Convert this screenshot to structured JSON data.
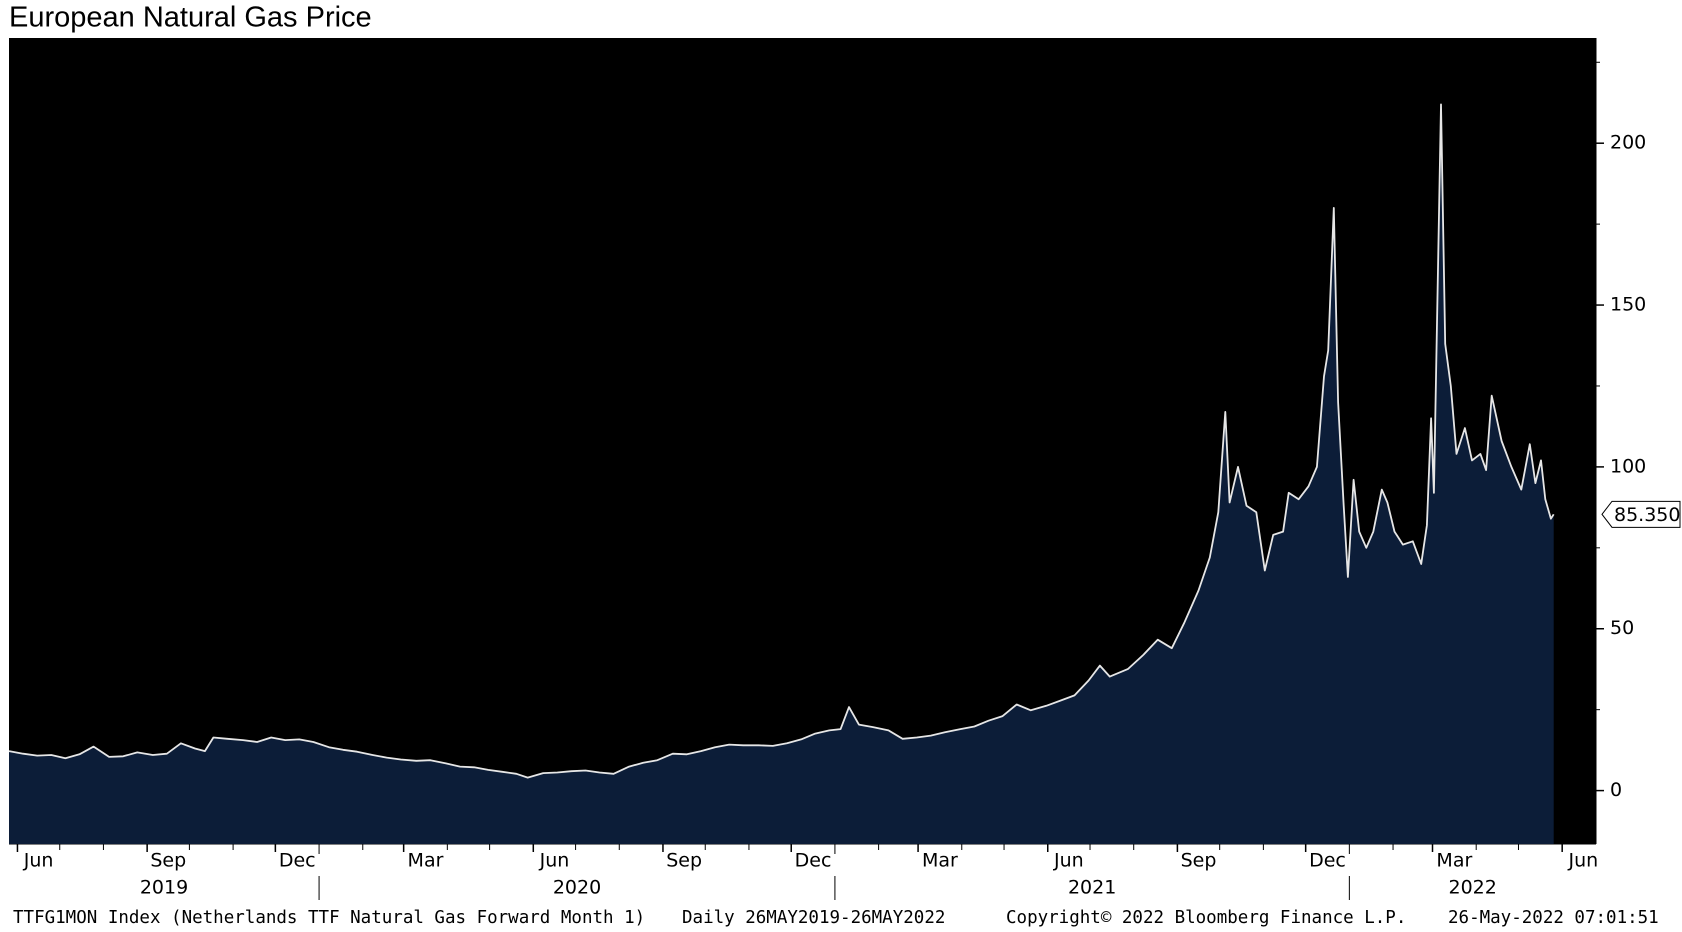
{
  "chart_data": {
    "type": "area",
    "title": "European Natural Gas Price",
    "background": "#000000",
    "x": [
      "2019-05-26",
      "2019-06-05",
      "2019-06-15",
      "2019-06-25",
      "2019-07-05",
      "2019-07-15",
      "2019-07-25",
      "2019-08-05",
      "2019-08-15",
      "2019-08-25",
      "2019-09-05",
      "2019-09-15",
      "2019-09-25",
      "2019-10-05",
      "2019-10-12",
      "2019-10-18",
      "2019-10-28",
      "2019-11-08",
      "2019-11-18",
      "2019-11-28",
      "2019-12-08",
      "2019-12-18",
      "2019-12-28",
      "2020-01-08",
      "2020-01-18",
      "2020-01-28",
      "2020-02-08",
      "2020-02-18",
      "2020-02-28",
      "2020-03-10",
      "2020-03-20",
      "2020-03-31",
      "2020-04-10",
      "2020-04-20",
      "2020-04-30",
      "2020-05-10",
      "2020-05-20",
      "2020-05-28",
      "2020-06-08",
      "2020-06-18",
      "2020-06-28",
      "2020-07-08",
      "2020-07-18",
      "2020-07-28",
      "2020-08-08",
      "2020-08-18",
      "2020-08-28",
      "2020-09-08",
      "2020-09-18",
      "2020-09-28",
      "2020-10-08",
      "2020-10-18",
      "2020-10-28",
      "2020-11-08",
      "2020-11-18",
      "2020-11-28",
      "2020-12-08",
      "2020-12-18",
      "2020-12-28",
      "2021-01-05",
      "2021-01-11",
      "2021-01-18",
      "2021-01-28",
      "2021-02-08",
      "2021-02-18",
      "2021-02-28",
      "2021-03-10",
      "2021-03-20",
      "2021-03-31",
      "2021-04-10",
      "2021-04-20",
      "2021-04-30",
      "2021-05-10",
      "2021-05-20",
      "2021-05-31",
      "2021-06-10",
      "2021-06-20",
      "2021-06-30",
      "2021-07-08",
      "2021-07-15",
      "2021-07-28",
      "2021-08-08",
      "2021-08-18",
      "2021-08-28",
      "2021-09-06",
      "2021-09-16",
      "2021-09-24",
      "2021-09-30",
      "2021-10-05",
      "2021-10-08",
      "2021-10-14",
      "2021-10-20",
      "2021-10-27",
      "2021-11-02",
      "2021-11-08",
      "2021-11-15",
      "2021-11-19",
      "2021-11-26",
      "2021-12-03",
      "2021-12-09",
      "2021-12-14",
      "2021-12-17",
      "2021-12-21",
      "2021-12-24",
      "2021-12-28",
      "2021-12-31",
      "2022-01-04",
      "2022-01-08",
      "2022-01-13",
      "2022-01-18",
      "2022-01-24",
      "2022-01-28",
      "2022-02-02",
      "2022-02-08",
      "2022-02-15",
      "2022-02-21",
      "2022-02-25",
      "2022-02-28",
      "2022-03-02",
      "2022-03-07",
      "2022-03-10",
      "2022-03-14",
      "2022-03-18",
      "2022-03-24",
      "2022-03-29",
      "2022-04-04",
      "2022-04-08",
      "2022-04-12",
      "2022-04-19",
      "2022-04-26",
      "2022-05-03",
      "2022-05-09",
      "2022-05-13",
      "2022-05-17",
      "2022-05-20",
      "2022-05-24",
      "2022-05-26"
    ],
    "series": [
      {
        "color": "#e6e6e6",
        "fill_color": "#0c1d38",
        "values": [
          12.2,
          11.4,
          10.8,
          11.0,
          10.0,
          11.2,
          13.6,
          10.4,
          10.6,
          11.8,
          11.0,
          11.4,
          14.6,
          13.0,
          12.2,
          16.4,
          16.0,
          15.6,
          15.0,
          16.4,
          15.6,
          15.8,
          15.0,
          13.4,
          12.6,
          12.0,
          11.0,
          10.2,
          9.6,
          9.2,
          9.4,
          8.4,
          7.4,
          7.2,
          6.4,
          5.8,
          5.2,
          4.0,
          5.4,
          5.6,
          6.0,
          6.2,
          5.6,
          5.2,
          7.4,
          8.6,
          9.4,
          11.4,
          11.2,
          12.2,
          13.4,
          14.2,
          14.0,
          14.0,
          13.8,
          14.6,
          15.8,
          17.6,
          18.6,
          19.0,
          25.8,
          20.4,
          19.6,
          18.6,
          16.0,
          16.4,
          17.0,
          18.0,
          19.0,
          19.8,
          21.6,
          23.0,
          26.6,
          24.8,
          26.2,
          27.8,
          29.4,
          34.0,
          38.6,
          35.2,
          37.6,
          42.0,
          46.6,
          44.0,
          52.0,
          61.8,
          72.0,
          86.0,
          117.0,
          89.0,
          100.0,
          88.0,
          86.0,
          68.0,
          79.0,
          80.0,
          92.0,
          90.0,
          94.0,
          100.0,
          128.0,
          136.0,
          180.0,
          120.0,
          88.0,
          66.0,
          96.0,
          80.0,
          75.0,
          80.0,
          93.0,
          89.0,
          80.0,
          76.0,
          77.0,
          70.0,
          82.0,
          115.0,
          92.0,
          212.0,
          138.0,
          125.0,
          104.0,
          112.0,
          102.0,
          104.0,
          99.0,
          122.0,
          108.0,
          100.0,
          93.0,
          107.0,
          95.0,
          102.0,
          90.0,
          84.0,
          85.35
        ],
        "value_labels": [
          null,
          null,
          null,
          null,
          null,
          null,
          null,
          null,
          null,
          null,
          null,
          null,
          null,
          null,
          null,
          null,
          null,
          null,
          null,
          null,
          null,
          null,
          null,
          null,
          null,
          null,
          null,
          null,
          null,
          null,
          null,
          null,
          null,
          null,
          null,
          null,
          null,
          null,
          null,
          null,
          null,
          null,
          null,
          null,
          null,
          null,
          null,
          null,
          null,
          null,
          null,
          null,
          null,
          null,
          null,
          null,
          null,
          null,
          null,
          null,
          null,
          null,
          null,
          null,
          null,
          null,
          null,
          null,
          null,
          null,
          null,
          null,
          null,
          null,
          null,
          null,
          null,
          null,
          null,
          null,
          null,
          null,
          null,
          null,
          null,
          null,
          null,
          null,
          null,
          null,
          null,
          null,
          null,
          null,
          null,
          null,
          null,
          null,
          null,
          null,
          null,
          null,
          null,
          null,
          null,
          null,
          null,
          null,
          null,
          null,
          null,
          null,
          null,
          null,
          null,
          null,
          null,
          null,
          null,
          null,
          null,
          null,
          null,
          null,
          null,
          null,
          null,
          null,
          null,
          null,
          null,
          null,
          null,
          null,
          null,
          null,
          "85.350"
        ]
      }
    ],
    "xlim": [
      "2019-05-26",
      "2022-06-25"
    ],
    "xticks": [
      {
        "value": "2019-06",
        "label": "Jun"
      },
      {
        "value": "2019-09",
        "label": "Sep"
      },
      {
        "value": "2019-12",
        "label": "Dec"
      },
      {
        "value": "2020-03",
        "label": "Mar"
      },
      {
        "value": "2020-06",
        "label": "Jun"
      },
      {
        "value": "2020-09",
        "label": "Sep"
      },
      {
        "value": "2020-12",
        "label": "Dec"
      },
      {
        "value": "2021-03",
        "label": "Mar"
      },
      {
        "value": "2021-06",
        "label": "Jun"
      },
      {
        "value": "2021-09",
        "label": "Sep"
      },
      {
        "value": "2021-12",
        "label": "Dec"
      },
      {
        "value": "2022-03",
        "label": "Mar"
      },
      {
        "value": "2022-06",
        "label": "Jun"
      }
    ],
    "year_labels": [
      2019,
      2020,
      2021,
      2022
    ],
    "ylim": [
      -16.5,
      232.5
    ],
    "yticks": [
      0,
      50,
      100,
      150,
      200
    ],
    "y_axis_side": "right",
    "footer": [
      "TTFG1MON Index (Netherlands TTF Natural Gas Forward Month 1)",
      "Daily 26MAY2019-26MAY2022",
      "Copyright© 2022 Bloomberg Finance L.P.",
      "26-May-2022 07:01:51"
    ]
  }
}
